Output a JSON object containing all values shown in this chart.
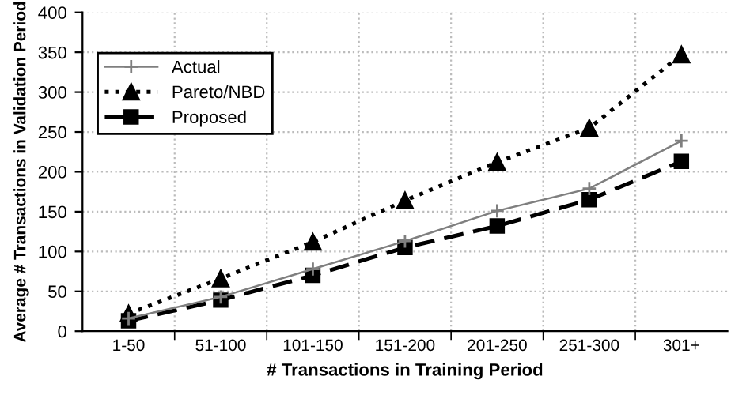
{
  "chart_data": {
    "type": "line",
    "xlabel": "# Transactions in Training Period",
    "ylabel": "Average # Transactions in Validation Period",
    "categories": [
      "1-50",
      "51-100",
      "101-150",
      "151-200",
      "201-250",
      "251-300",
      "301+"
    ],
    "series": [
      {
        "name": "Actual",
        "color": "#7f7f7f",
        "marker": "cross",
        "line_style": "solid",
        "values": [
          16,
          43,
          78,
          113,
          151,
          179,
          239
        ]
      },
      {
        "name": "Pareto/NBD",
        "color": "#000000",
        "marker": "triangle",
        "line_style": "dotted",
        "values": [
          22,
          66,
          112,
          164,
          212,
          255,
          347
        ]
      },
      {
        "name": "Proposed",
        "color": "#000000",
        "marker": "square",
        "line_style": "dashed",
        "values": [
          13,
          39,
          70,
          105,
          132,
          165,
          213
        ]
      }
    ],
    "ylim": [
      0,
      400
    ],
    "yticks": [
      0,
      50,
      100,
      150,
      200,
      250,
      300,
      350,
      400
    ],
    "grid": true,
    "legend": "top left"
  }
}
